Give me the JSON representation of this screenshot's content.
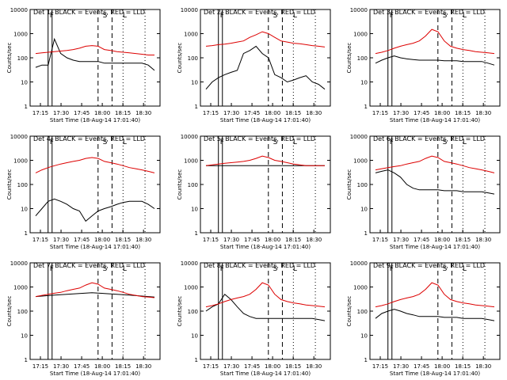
{
  "colors": {
    "events": "#000000",
    "lld": "#dd0000",
    "axis": "#000000",
    "background": "#ffffff"
  },
  "shared": {
    "xlabel": "Start Time (18-Aug-14 17:01:40)",
    "ylabel": "Counts/sec",
    "xticks": [
      "17:15",
      "17:30",
      "17:45",
      "18:00",
      "18:15",
      "18:30"
    ],
    "yticks": [
      "1",
      "10",
      "100",
      "1000",
      "10000"
    ],
    "ylim": [
      1,
      10000
    ],
    "yscale": "log"
  },
  "chart_data": [
    {
      "type": "line",
      "title": "Det 1: BLACK = Events, RED = LLD",
      "markers": [
        "F",
        "S",
        "L"
      ],
      "series": [
        {
          "name": "Events",
          "color": "#000000",
          "x": [
            17.12,
            17.17,
            17.22,
            17.27,
            17.33,
            17.38,
            17.45,
            17.5,
            17.6,
            17.7,
            17.75,
            18.05,
            18.08,
            18.1,
            18.15,
            18.3,
            18.35,
            18.5,
            18.52,
            18.55
          ],
          "y": [
            40,
            50,
            50,
            600,
            150,
            100,
            80,
            70,
            70,
            70,
            70,
            60,
            60,
            60,
            60,
            60,
            60,
            60,
            50,
            30
          ]
        },
        {
          "name": "LLD",
          "color": "#dd0000",
          "x": [
            17.12,
            17.17,
            17.22,
            17.27,
            17.33,
            17.38,
            17.45,
            17.5,
            17.6,
            17.7,
            17.75,
            18.05,
            18.08,
            18.1,
            18.15,
            18.3,
            18.35,
            18.5,
            18.52,
            18.55
          ],
          "y": [
            150,
            160,
            170,
            180,
            190,
            200,
            220,
            250,
            300,
            320,
            300,
            220,
            200,
            180,
            170,
            160,
            150,
            140,
            130,
            130
          ]
        }
      ]
    },
    {
      "type": "line",
      "title": "Det 2: BLACK = Events, RED = LLD",
      "markers": [
        "F",
        "S",
        "L"
      ],
      "series": [
        {
          "name": "Events",
          "color": "#000000",
          "x": [
            17.12,
            17.17,
            17.22,
            17.27,
            17.33,
            17.38,
            17.45,
            17.5,
            17.6,
            17.7,
            17.75,
            18.05,
            18.08,
            18.1,
            18.15,
            18.3,
            18.35,
            18.5,
            18.52,
            18.55
          ],
          "y": [
            5,
            10,
            15,
            20,
            25,
            30,
            150,
            200,
            300,
            150,
            100,
            20,
            15,
            10,
            12,
            15,
            18,
            10,
            8,
            5
          ]
        },
        {
          "name": "LLD",
          "color": "#dd0000",
          "x": [
            17.12,
            17.17,
            17.22,
            17.27,
            17.33,
            17.38,
            17.45,
            17.5,
            17.6,
            17.7,
            17.75,
            18.05,
            18.08,
            18.1,
            18.15,
            18.3,
            18.35,
            18.5,
            18.52,
            18.55
          ],
          "y": [
            300,
            320,
            350,
            370,
            400,
            450,
            500,
            700,
            900,
            1200,
            1000,
            700,
            500,
            450,
            400,
            380,
            350,
            320,
            300,
            280
          ]
        }
      ]
    },
    {
      "type": "line",
      "title": "Det 3: BLACK = Events, RED = LLD",
      "markers": [
        "F",
        "S",
        "L"
      ],
      "series": [
        {
          "name": "Events",
          "color": "#000000",
          "x": [
            17.12,
            17.17,
            17.22,
            17.27,
            17.33,
            17.38,
            17.45,
            17.5,
            17.6,
            17.7,
            17.75,
            18.05,
            18.08,
            18.1,
            18.15,
            18.3,
            18.35,
            18.5,
            18.52,
            18.55
          ],
          "y": [
            60,
            80,
            100,
            120,
            100,
            90,
            85,
            80,
            80,
            80,
            80,
            75,
            75,
            75,
            70,
            70,
            70,
            70,
            60,
            50
          ]
        },
        {
          "name": "LLD",
          "color": "#dd0000",
          "x": [
            17.12,
            17.17,
            17.22,
            17.27,
            17.33,
            17.38,
            17.45,
            17.5,
            17.6,
            17.7,
            17.75,
            18.05,
            18.08,
            18.1,
            18.15,
            18.3,
            18.35,
            18.5,
            18.52,
            18.55
          ],
          "y": [
            150,
            170,
            200,
            250,
            300,
            350,
            400,
            500,
            800,
            1500,
            1200,
            500,
            300,
            250,
            220,
            200,
            180,
            170,
            160,
            150
          ]
        }
      ]
    },
    {
      "type": "line",
      "title": "Det 4: BLACK = Events, RED = LLD",
      "markers": [
        "F",
        "S",
        "L"
      ],
      "series": [
        {
          "name": "Events",
          "color": "#000000",
          "x": [
            17.12,
            17.17,
            17.22,
            17.27,
            17.33,
            17.38,
            17.45,
            17.5,
            17.6,
            17.7,
            17.75,
            18.05,
            18.08,
            18.1,
            18.15,
            18.3,
            18.35,
            18.5,
            18.52,
            18.55
          ],
          "y": [
            5,
            10,
            20,
            25,
            20,
            15,
            10,
            8,
            3,
            5,
            8,
            10,
            12,
            15,
            18,
            20,
            20,
            20,
            15,
            10
          ]
        },
        {
          "name": "LLD",
          "color": "#dd0000",
          "x": [
            17.12,
            17.17,
            17.22,
            17.27,
            17.33,
            17.38,
            17.45,
            17.5,
            17.6,
            17.7,
            17.75,
            18.05,
            18.08,
            18.1,
            18.15,
            18.3,
            18.35,
            18.5,
            18.52,
            18.55
          ],
          "y": [
            300,
            400,
            500,
            600,
            700,
            800,
            900,
            1000,
            1200,
            1300,
            1200,
            900,
            800,
            700,
            600,
            500,
            450,
            400,
            350,
            300
          ]
        }
      ]
    },
    {
      "type": "line",
      "title": "Det 5: BLACK = Events, RED = LLD",
      "markers": [
        "F",
        "S",
        "L"
      ],
      "series": [
        {
          "name": "Events",
          "color": "#000000",
          "x": [
            17.12,
            17.17,
            17.22,
            17.27,
            17.33,
            17.38,
            17.45,
            17.5,
            17.6,
            17.7,
            17.75,
            18.05,
            18.08,
            18.1,
            18.15,
            18.3,
            18.35,
            18.5,
            18.52,
            18.55
          ],
          "y": [
            600,
            600,
            600,
            600,
            600,
            600,
            600,
            600,
            600,
            600,
            600,
            600,
            600,
            600,
            600,
            600,
            600,
            600,
            600,
            600
          ]
        },
        {
          "name": "LLD",
          "color": "#dd0000",
          "x": [
            17.12,
            17.17,
            17.22,
            17.27,
            17.33,
            17.38,
            17.45,
            17.5,
            17.6,
            17.7,
            17.75,
            18.05,
            18.08,
            18.1,
            18.15,
            18.3,
            18.35,
            18.5,
            18.52,
            18.55
          ],
          "y": [
            600,
            650,
            700,
            750,
            800,
            850,
            900,
            1000,
            1200,
            1500,
            1300,
            1000,
            900,
            800,
            700,
            650,
            600,
            600,
            600,
            600
          ]
        }
      ]
    },
    {
      "type": "line",
      "title": "Det 6: BLACK = Events, RED = LLD",
      "markers": [
        "F",
        "S",
        "L"
      ],
      "series": [
        {
          "name": "Events",
          "color": "#000000",
          "x": [
            17.12,
            17.17,
            17.22,
            17.27,
            17.33,
            17.38,
            17.45,
            17.5,
            17.6,
            17.7,
            17.75,
            18.05,
            18.08,
            18.1,
            18.15,
            18.3,
            18.35,
            18.5,
            18.52,
            18.55
          ],
          "y": [
            300,
            350,
            400,
            300,
            200,
            100,
            70,
            60,
            60,
            60,
            60,
            55,
            55,
            55,
            50,
            50,
            50,
            50,
            45,
            40
          ]
        },
        {
          "name": "LLD",
          "color": "#dd0000",
          "x": [
            17.12,
            17.17,
            17.22,
            17.27,
            17.33,
            17.38,
            17.45,
            17.5,
            17.6,
            17.7,
            17.75,
            18.05,
            18.08,
            18.1,
            18.15,
            18.3,
            18.35,
            18.5,
            18.52,
            18.55
          ],
          "y": [
            400,
            450,
            500,
            550,
            600,
            700,
            800,
            900,
            1200,
            1500,
            1300,
            900,
            800,
            700,
            600,
            500,
            450,
            400,
            350,
            300
          ]
        }
      ]
    },
    {
      "type": "line",
      "title": "Det 7: BLACK = Events, RED = LLD",
      "markers": [
        "F",
        "S",
        "L"
      ],
      "series": [
        {
          "name": "Events",
          "color": "#000000",
          "x": [
            17.12,
            17.17,
            17.22,
            17.27,
            17.33,
            17.38,
            17.45,
            17.5,
            17.6,
            17.7,
            17.75,
            18.05,
            18.08,
            18.1,
            18.15,
            18.3,
            18.35,
            18.5,
            18.52,
            18.55
          ],
          "y": [
            400,
            420,
            440,
            460,
            480,
            500,
            520,
            540,
            560,
            580,
            560,
            540,
            520,
            500,
            480,
            460,
            440,
            420,
            400,
            380
          ]
        },
        {
          "name": "LLD",
          "color": "#dd0000",
          "x": [
            17.12,
            17.17,
            17.22,
            17.27,
            17.33,
            17.38,
            17.45,
            17.5,
            17.6,
            17.7,
            17.75,
            18.05,
            18.08,
            18.1,
            18.15,
            18.3,
            18.35,
            18.5,
            18.52,
            18.55
          ],
          "y": [
            400,
            450,
            500,
            550,
            600,
            700,
            800,
            900,
            1200,
            1500,
            1300,
            900,
            800,
            700,
            600,
            500,
            450,
            400,
            380,
            360
          ]
        }
      ]
    },
    {
      "type": "line",
      "title": "Det 8: BLACK = Events, RED = LLD",
      "markers": [
        "F",
        "S",
        "L"
      ],
      "series": [
        {
          "name": "Events",
          "color": "#000000",
          "x": [
            17.12,
            17.17,
            17.22,
            17.27,
            17.33,
            17.38,
            17.45,
            17.5,
            17.6,
            17.7,
            17.75,
            18.05,
            18.08,
            18.1,
            18.15,
            18.3,
            18.35,
            18.5,
            18.52,
            18.55
          ],
          "y": [
            100,
            150,
            200,
            500,
            300,
            150,
            80,
            60,
            50,
            50,
            50,
            50,
            50,
            50,
            50,
            50,
            50,
            50,
            45,
            40
          ]
        },
        {
          "name": "LLD",
          "color": "#dd0000",
          "x": [
            17.12,
            17.17,
            17.22,
            17.27,
            17.33,
            17.38,
            17.45,
            17.5,
            17.6,
            17.7,
            17.75,
            18.05,
            18.08,
            18.1,
            18.15,
            18.3,
            18.35,
            18.5,
            18.52,
            18.55
          ],
          "y": [
            150,
            170,
            200,
            250,
            300,
            350,
            400,
            500,
            800,
            1500,
            1200,
            500,
            300,
            250,
            220,
            200,
            180,
            170,
            160,
            150
          ]
        }
      ]
    },
    {
      "type": "line",
      "title": "Det 9: BLACK = Events, RED = LLD",
      "markers": [
        "F",
        "S",
        "L"
      ],
      "series": [
        {
          "name": "Events",
          "color": "#000000",
          "x": [
            17.12,
            17.17,
            17.22,
            17.27,
            17.33,
            17.38,
            17.45,
            17.5,
            17.6,
            17.7,
            17.75,
            18.05,
            18.08,
            18.1,
            18.15,
            18.3,
            18.35,
            18.5,
            18.52,
            18.55
          ],
          "y": [
            50,
            80,
            100,
            120,
            100,
            80,
            70,
            60,
            60,
            60,
            60,
            55,
            55,
            55,
            50,
            50,
            50,
            50,
            45,
            40
          ]
        },
        {
          "name": "LLD",
          "color": "#dd0000",
          "x": [
            17.12,
            17.17,
            17.22,
            17.27,
            17.33,
            17.38,
            17.45,
            17.5,
            17.6,
            17.7,
            17.75,
            18.05,
            18.08,
            18.1,
            18.15,
            18.3,
            18.35,
            18.5,
            18.52,
            18.55
          ],
          "y": [
            150,
            170,
            200,
            250,
            300,
            350,
            400,
            500,
            800,
            1500,
            1200,
            500,
            300,
            250,
            220,
            200,
            180,
            170,
            160,
            150
          ]
        }
      ]
    }
  ]
}
